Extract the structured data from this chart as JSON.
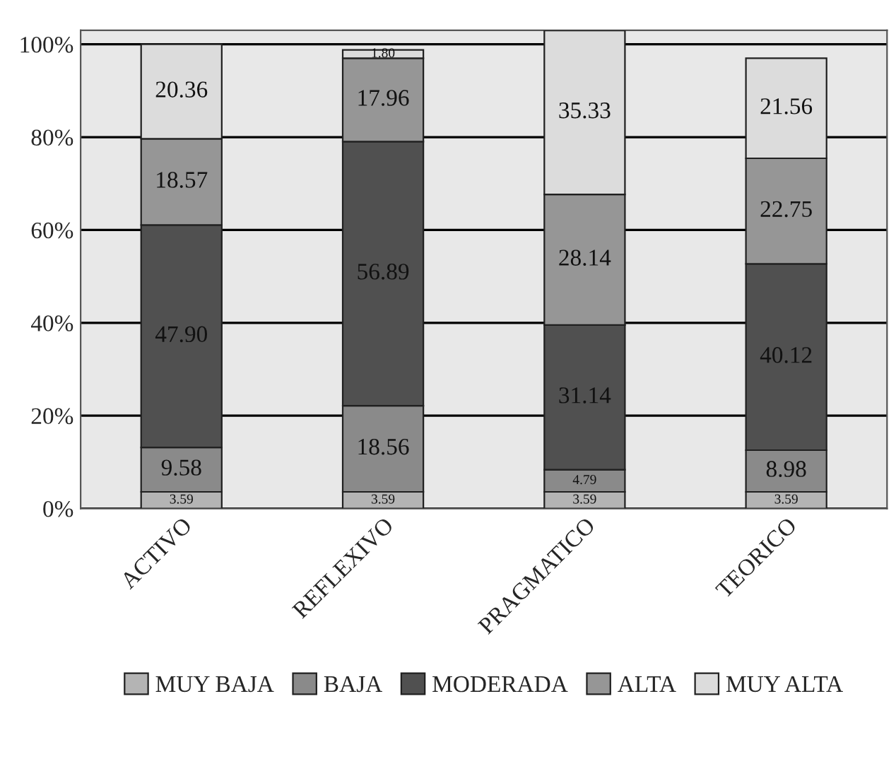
{
  "chart_data": {
    "type": "bar",
    "stacked": true,
    "categories": [
      "ACTIVO",
      "REFLEXIVO",
      "PRAGMATICO",
      "TEORICO"
    ],
    "series": [
      {
        "name": "MUY BAJA",
        "color": "#b4b4b4",
        "values": [
          3.59,
          3.59,
          3.59,
          3.59
        ],
        "value_labels": [
          "3.59",
          "3.59",
          "3.59",
          "3.59"
        ]
      },
      {
        "name": "BAJA",
        "color": "#8a8a8a",
        "values": [
          9.58,
          18.56,
          4.79,
          8.98
        ],
        "value_labels": [
          "9.58",
          "18.56",
          "4.79",
          "8.98"
        ]
      },
      {
        "name": "MODERADA",
        "color": "#505050",
        "values": [
          47.9,
          56.89,
          31.14,
          40.12
        ],
        "value_labels": [
          "47.90",
          "56.89",
          "31.14",
          "40.12"
        ]
      },
      {
        "name": "ALTA",
        "color": "#969696",
        "values": [
          18.57,
          17.96,
          28.14,
          22.75
        ],
        "value_labels": [
          "18.57",
          "17.96",
          "28.14",
          "22.75"
        ]
      },
      {
        "name": "MUY ALTA",
        "color": "#dcdcdc",
        "values": [
          20.36,
          1.8,
          35.33,
          21.56
        ],
        "value_labels": [
          "20.36",
          "1.80",
          "35.33",
          "21.56"
        ]
      }
    ],
    "ylim": [
      0,
      103
    ],
    "yticks": [
      {
        "value": 0,
        "label": "0%"
      },
      {
        "value": 20,
        "label": "20%"
      },
      {
        "value": 40,
        "label": "40%"
      },
      {
        "value": 60,
        "label": "60%"
      },
      {
        "value": 80,
        "label": "80%"
      },
      {
        "value": 100,
        "label": "100%"
      }
    ],
    "grid": "y",
    "legend": "bottom"
  }
}
